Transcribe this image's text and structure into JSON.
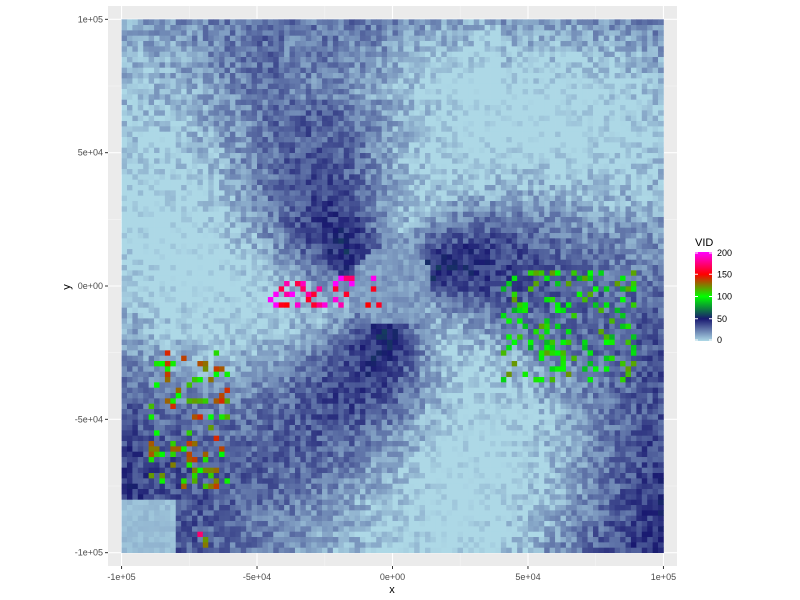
{
  "chart_data": {
    "type": "heatmap",
    "title": "",
    "xlabel": "x",
    "ylabel": "y",
    "xlim": [
      -105000,
      105000
    ],
    "ylim": [
      -105000,
      105000
    ],
    "x_ticks": [
      {
        "value": -100000,
        "label": "-1e+05"
      },
      {
        "value": -50000,
        "label": "-5e+04"
      },
      {
        "value": 0,
        "label": "0e+00"
      },
      {
        "value": 50000,
        "label": "5e+04"
      },
      {
        "value": 100000,
        "label": "1e+05"
      }
    ],
    "y_ticks": [
      {
        "value": 100000,
        "label": "1e+05"
      },
      {
        "value": 50000,
        "label": "5e+04"
      },
      {
        "value": 0,
        "label": "0e+00"
      },
      {
        "value": -50000,
        "label": "-5e+04"
      },
      {
        "value": -100000,
        "label": "-1e+05"
      }
    ],
    "grid": true,
    "raster_extent": {
      "x": [
        -100000,
        100000
      ],
      "y": [
        -100000,
        100000
      ]
    },
    "legend": {
      "title": "VID",
      "placement": "right",
      "range": [
        0,
        200
      ],
      "ticks": [
        {
          "value": 200,
          "label": "200"
        },
        {
          "value": 150,
          "label": "150"
        },
        {
          "value": 100,
          "label": "100"
        },
        {
          "value": 50,
          "label": "50"
        },
        {
          "value": 0,
          "label": "0"
        }
      ],
      "color_stops": [
        {
          "value": 0,
          "color": "#add8e6"
        },
        {
          "value": 50,
          "color": "#191970"
        },
        {
          "value": 100,
          "color": "#00ff00"
        },
        {
          "value": 150,
          "color": "#ff0000"
        },
        {
          "value": 200,
          "color": "#ff00ff"
        }
      ]
    },
    "features": [
      {
        "name": "high-VID band south-east",
        "x": [
          40000,
          90000
        ],
        "y": [
          -35000,
          5000
        ],
        "vid": 110
      },
      {
        "name": "high-VID streak west of center",
        "x": [
          -45000,
          -5000
        ],
        "y": [
          -8000,
          3000
        ],
        "vid": 190
      },
      {
        "name": "high-VID cluster south-west",
        "x": [
          -90000,
          -60000
        ],
        "y": [
          -75000,
          -25000
        ],
        "vid": 130
      },
      {
        "name": "high-VID spot lower-left corner",
        "x": [
          -72000,
          -68000
        ],
        "y": [
          -97000,
          -93000
        ],
        "vid": 160
      }
    ]
  },
  "colors": {
    "panel_background": "#ebebeb",
    "grid_major": "#ffffff",
    "grid_minor": "#f5f5f5",
    "tick_text": "#4d4d4d"
  }
}
